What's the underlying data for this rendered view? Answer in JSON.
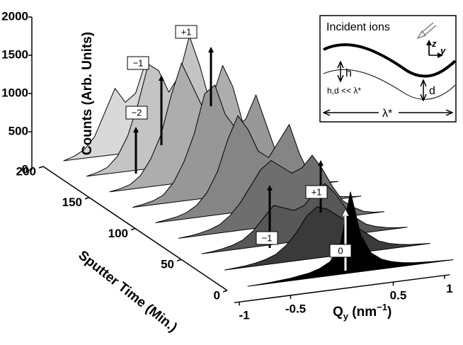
{
  "chart_data": {
    "type": "waterfall",
    "ylabel": "Counts (Arb. Units)",
    "tlabel": "Sputter Time (Min.)",
    "xlabel": {
      "q": "Q",
      "sub": "y",
      "unit": " (nm",
      "sup": "−1",
      "close": ")"
    },
    "x": [
      -1,
      -0.9,
      -0.8,
      -0.7,
      -0.6,
      -0.5,
      -0.4,
      -0.3,
      -0.2,
      -0.1,
      0,
      0.1,
      0.2,
      0.3,
      0.4,
      0.5,
      0.6,
      0.7,
      0.8,
      0.9,
      1
    ],
    "xlim": [
      -1,
      1
    ],
    "xticks": [
      -1,
      -0.5,
      0.5,
      1
    ],
    "ylim": [
      0,
      2000
    ],
    "yticks": [
      0,
      500,
      1000,
      1500,
      2000
    ],
    "tlim": [
      0,
      200
    ],
    "tticks": [
      0,
      50,
      100,
      150,
      200
    ],
    "series": [
      {
        "t": 200,
        "color": "#d9d9d9",
        "values": [
          40,
          80,
          150,
          300,
          600,
          900,
          700,
          800,
          1200,
          800,
          700,
          500,
          300,
          200,
          100,
          70,
          50,
          40,
          30,
          20,
          20
        ]
      },
      {
        "t": 175,
        "color": "#c4c4c4",
        "values": [
          40,
          70,
          120,
          250,
          500,
          900,
          1400,
          1300,
          1000,
          1200,
          1700,
          1300,
          800,
          400,
          200,
          100,
          70,
          50,
          40,
          30,
          20
        ]
      },
      {
        "t": 150,
        "color": "#adadad",
        "values": [
          40,
          60,
          100,
          200,
          400,
          700,
          1200,
          1600,
          1300,
          1000,
          1100,
          1500,
          1200,
          700,
          350,
          200,
          100,
          70,
          50,
          40,
          30
        ]
      },
      {
        "t": 125,
        "color": "#979797",
        "values": [
          40,
          60,
          90,
          150,
          300,
          550,
          900,
          1400,
          1500,
          1100,
          900,
          1000,
          1300,
          900,
          500,
          250,
          150,
          80,
          60,
          40,
          30
        ]
      },
      {
        "t": 100,
        "color": "#858585",
        "values": [
          40,
          60,
          80,
          120,
          200,
          350,
          600,
          1000,
          1300,
          1100,
          800,
          700,
          900,
          1100,
          700,
          400,
          200,
          120,
          70,
          50,
          40
        ]
      },
      {
        "t": 75,
        "color": "#6e6e6e",
        "values": [
          40,
          50,
          70,
          100,
          150,
          250,
          400,
          600,
          800,
          900,
          800,
          700,
          750,
          900,
          700,
          450,
          250,
          150,
          80,
          50,
          40
        ]
      },
      {
        "t": 50,
        "color": "#575757",
        "values": [
          40,
          50,
          70,
          100,
          150,
          250,
          400,
          550,
          500,
          450,
          500,
          650,
          750,
          600,
          400,
          250,
          150,
          100,
          70,
          50,
          40
        ]
      },
      {
        "t": 25,
        "color": "#3a3a3a",
        "values": [
          30,
          40,
          50,
          70,
          100,
          150,
          250,
          400,
          600,
          700,
          650,
          550,
          450,
          350,
          250,
          150,
          100,
          70,
          50,
          40,
          30
        ]
      },
      {
        "t": 0,
        "color": "#000000",
        "values": [
          20,
          25,
          30,
          40,
          50,
          70,
          90,
          130,
          200,
          400,
          1080,
          500,
          250,
          150,
          100,
          70,
          50,
          40,
          30,
          25,
          20
        ]
      }
    ],
    "annotations": [
      "−2",
      "−1",
      "+1",
      "−1",
      "+1",
      "0"
    ],
    "inset": {
      "label": "Incident ions",
      "h": "h",
      "d": "d",
      "condition": "h,d << λ*",
      "wavelength": "λ*",
      "z": "z",
      "y": "y"
    }
  }
}
